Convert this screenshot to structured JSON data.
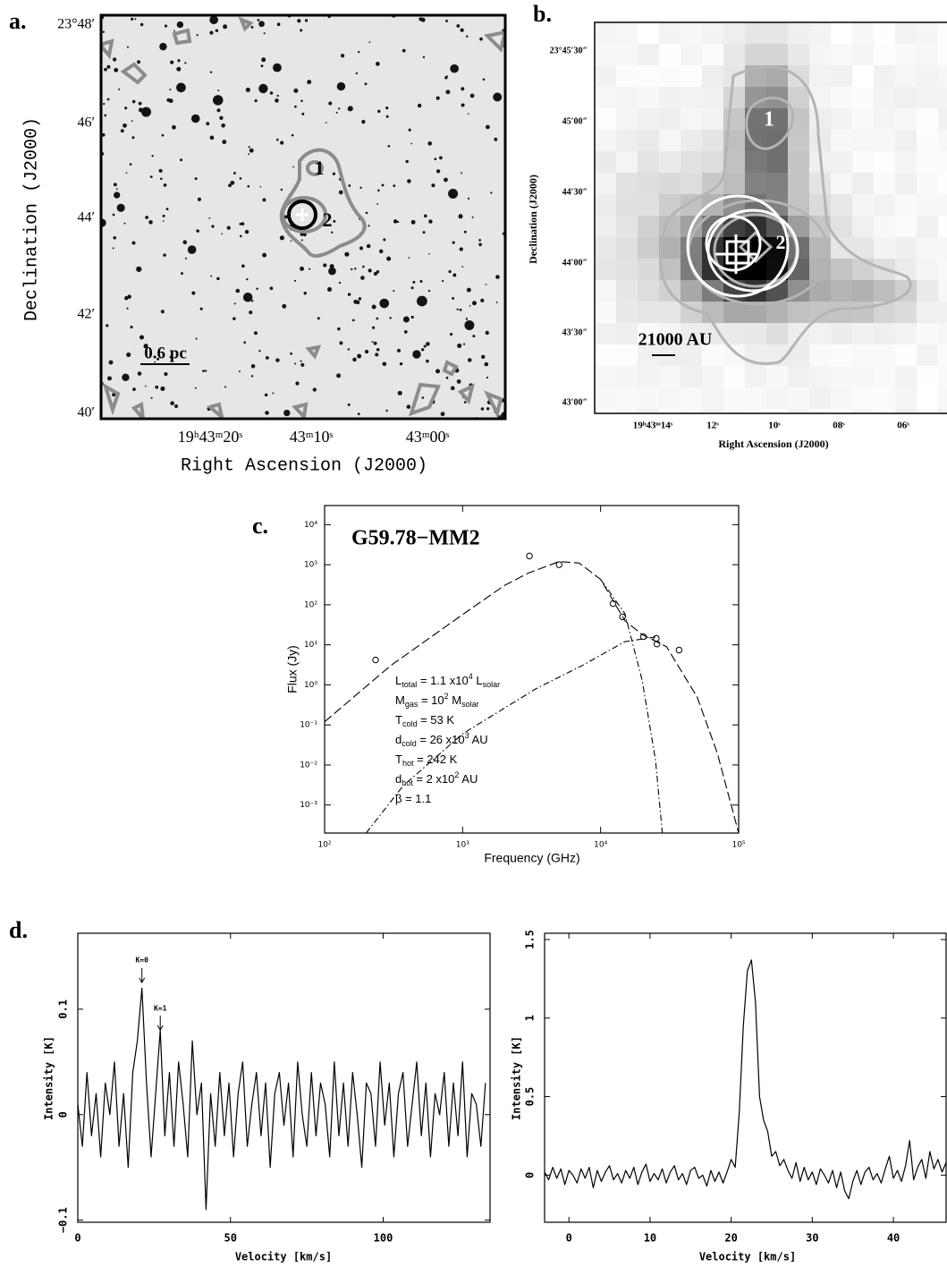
{
  "panel_labels": [
    "a.",
    "b.",
    "c.",
    "d."
  ],
  "images": [
    {
      "x_label": "Right Ascension (J2000)",
      "y_label": "Declination (J2000)",
      "x_tick_labels": [
        "19ʰ43ᵐ20ˢ",
        "43ᵐ10ˢ",
        "43ᵐ00ˢ"
      ],
      "y_tick_labels": [
        "23°48′",
        "46′",
        "44′",
        "42′",
        "40′"
      ],
      "annotations": [
        "1",
        "2",
        "0.6 pc"
      ]
    },
    {
      "x_label": "Right Ascension (J2000)",
      "y_label": "Declination (J2000)",
      "x_tick_labels": [
        "19ʰ43ᵐ14ˢ",
        "12ˢ",
        "10ˢ",
        "08ˢ",
        "06ˢ"
      ],
      "y_tick_labels": [
        "23°45′30″",
        "45′00″",
        "44′30″",
        "44′00″",
        "43′30″",
        "43′00″"
      ],
      "annotations": [
        "1",
        "2",
        "21000 AU"
      ]
    }
  ],
  "chart_data": [
    {
      "type": "line",
      "title": "G59.78−MM2",
      "x_label": "Frequency (GHz)",
      "y_label": "Flux (Jy)",
      "log_x": true,
      "log_y": true,
      "xlim": [
        100,
        100000
      ],
      "ylim": [
        0.0002,
        30000
      ],
      "xticks": [
        {
          "value": 100,
          "label": "10²"
        },
        {
          "value": 1000,
          "label": "10³"
        },
        {
          "value": 10000,
          "label": "10⁴"
        },
        {
          "value": 100000,
          "label": "10⁵"
        }
      ],
      "yticks": [
        {
          "value": 0.001,
          "label": "10⁻³"
        },
        {
          "value": 0.01,
          "label": "10⁻²"
        },
        {
          "value": 0.1,
          "label": "10⁻¹"
        },
        {
          "value": 1,
          "label": "10⁰"
        },
        {
          "value": 10,
          "label": "10¹"
        },
        {
          "value": 100,
          "label": "10²"
        },
        {
          "value": 1000,
          "label": "10³"
        },
        {
          "value": 10000,
          "label": "10⁴"
        }
      ],
      "series": [
        {
          "marker": "open-circle",
          "color": "#000000",
          "x": [
            234,
            3050,
            5000,
            12300,
            14400,
            20400,
            25300,
            25600,
            37000
          ],
          "values": [
            4.2,
            1650,
            1000,
            107,
            50,
            16,
            14.5,
            10.5,
            7.4
          ]
        },
        {
          "line": "long-dash",
          "color": "#000000",
          "x": [
            100,
            300,
            1000,
            2000,
            3000,
            5000,
            7000,
            10000,
            15000,
            20000,
            30000,
            50000,
            70000,
            100000
          ],
          "values": [
            0.12,
            3,
            57,
            300,
            620,
            1200,
            1100,
            430,
            40,
            18,
            9,
            0.5,
            0.02,
            0.0002
          ]
        },
        {
          "line": "dash-dot",
          "color": "#000000",
          "x": [
            10000,
            15000,
            20000,
            25000,
            28000
          ],
          "values": [
            430,
            60,
            1.3,
            0.013,
            0.0002
          ]
        },
        {
          "line": "dash-dot",
          "color": "#000000",
          "x": [
            200,
            370,
            1000,
            3400,
            7300,
            15000,
            26000
          ],
          "values": [
            0.0002,
            0.003,
            0.06,
            0.8,
            3,
            12,
            16
          ]
        }
      ],
      "notes": [
        [
          {
            "text": "L"
          },
          {
            "sub": "total"
          },
          {
            "text": " = 1.1 x10"
          },
          {
            "sup": "4"
          },
          {
            "text": " L"
          },
          {
            "sub": "solar"
          }
        ],
        [
          {
            "text": "M"
          },
          {
            "sub": "gas"
          },
          {
            "text": " = 10"
          },
          {
            "sup": "2"
          },
          {
            "text": " M"
          },
          {
            "sub": "solar"
          }
        ],
        [
          {
            "text": "T"
          },
          {
            "sub": "cold"
          },
          {
            "text": " = 53 K"
          }
        ],
        [
          {
            "text": "d"
          },
          {
            "sub": "cold"
          },
          {
            "text": " = 26 x10"
          },
          {
            "sup": "3"
          },
          {
            "text": " AU"
          }
        ],
        [
          {
            "text": "T"
          },
          {
            "sub": "hot"
          },
          {
            "text": " = 242 K"
          }
        ],
        [
          {
            "text": "d"
          },
          {
            "sub": "hot"
          },
          {
            "text": " = 2 x10"
          },
          {
            "sup": "2"
          },
          {
            "text": " AU"
          }
        ],
        [
          {
            "text": "β = 1.1"
          }
        ]
      ]
    },
    {
      "type": "line",
      "x_label": "Velocity  [km/s]",
      "y_label": "Intensity [K]",
      "xlim": [
        0,
        135
      ],
      "ylim": [
        -0.102,
        0.172
      ],
      "xticks": [
        0,
        50,
        100
      ],
      "yticks": [
        {
          "value": -0.1,
          "label": "−0.1"
        },
        0,
        0.1
      ],
      "annotations": [
        {
          "text": "K=0",
          "x": 21
        },
        {
          "text": "K=1",
          "x": 27
        }
      ],
      "series": [
        {
          "color": "#000000",
          "x": [
            0,
            1.5,
            3,
            4.5,
            6,
            7.5,
            9,
            10.5,
            12,
            13.5,
            15,
            16.5,
            18,
            19.5,
            21,
            22.5,
            24,
            25.5,
            27,
            28.5,
            30,
            31.5,
            33,
            34.5,
            36,
            37.5,
            39,
            40.5,
            42,
            43.5,
            45,
            46.5,
            48,
            49.5,
            51,
            52.5,
            54,
            55.5,
            57,
            58.5,
            60,
            61.5,
            63,
            64.5,
            66,
            67.5,
            69,
            70.5,
            72,
            73.5,
            75,
            76.5,
            78,
            79.5,
            81,
            82.5,
            84,
            85.5,
            87,
            88.5,
            90,
            91.5,
            93,
            94.5,
            96,
            97.5,
            99,
            100.5,
            102,
            103.5,
            105,
            106.5,
            108,
            109.5,
            111,
            112.5,
            114,
            115.5,
            117,
            118.5,
            120,
            121.5,
            123,
            124.5,
            126,
            127.5,
            129,
            130.5,
            132,
            133.5
          ],
          "values": [
            0.01,
            -0.03,
            0.04,
            -0.02,
            0.02,
            -0.04,
            0.03,
            0.0,
            0.05,
            -0.03,
            0.02,
            -0.05,
            0.04,
            0.07,
            0.12,
            0.03,
            -0.04,
            0.02,
            0.08,
            -0.02,
            0.04,
            -0.03,
            0.05,
            0.01,
            -0.04,
            0.07,
            0.0,
            0.03,
            -0.09,
            0.02,
            -0.03,
            0.04,
            -0.02,
            0.03,
            -0.04,
            0.02,
            0.05,
            -0.03,
            0.01,
            0.04,
            -0.02,
            0.03,
            -0.05,
            0.02,
            0.04,
            -0.01,
            0.03,
            -0.04,
            0.05,
            0.0,
            -0.03,
            0.04,
            -0.02,
            0.03,
            0.01,
            -0.04,
            0.05,
            -0.02,
            0.03,
            -0.03,
            0.04,
            0.0,
            -0.05,
            0.03,
            0.02,
            -0.03,
            0.05,
            -0.01,
            0.03,
            -0.04,
            0.02,
            0.04,
            -0.03,
            0.01,
            0.05,
            -0.02,
            0.03,
            -0.04,
            0.02,
            0.0,
            0.04,
            -0.03,
            0.03,
            -0.02,
            0.05,
            -0.04,
            0.02,
            0.01,
            -0.03,
            0.03
          ]
        }
      ]
    },
    {
      "type": "line",
      "x_label": "Velocity  [km/s]",
      "y_label": "Intensity [K]",
      "xlim": [
        -3,
        46.5
      ],
      "ylim": [
        -0.3,
        1.54
      ],
      "xticks": [
        0,
        10,
        20,
        30,
        40
      ],
      "yticks": [
        0,
        0.5,
        1,
        1.5
      ],
      "series": [
        {
          "color": "#000000",
          "x": [
            -3,
            -2.5,
            -2,
            -1.5,
            -1,
            -0.5,
            0,
            0.5,
            1,
            1.5,
            2,
            2.5,
            3,
            3.5,
            4,
            4.5,
            5,
            5.5,
            6,
            6.5,
            7,
            7.5,
            8,
            8.5,
            9,
            9.5,
            10,
            10.5,
            11,
            11.5,
            12,
            12.5,
            13,
            13.5,
            14,
            14.5,
            15,
            15.5,
            16,
            16.5,
            17,
            17.5,
            18,
            18.5,
            19,
            19.5,
            20,
            20.5,
            21,
            21.5,
            22,
            22.5,
            23,
            23.5,
            24,
            24.5,
            25,
            25.5,
            26,
            26.5,
            27,
            27.5,
            28,
            28.5,
            29,
            29.5,
            30,
            30.5,
            31,
            31.5,
            32,
            32.5,
            33,
            33.5,
            34,
            34.5,
            35,
            35.5,
            36,
            36.5,
            37,
            37.5,
            38,
            38.5,
            39,
            39.5,
            40,
            40.5,
            41,
            41.5,
            42,
            42.5,
            43,
            43.5,
            44,
            44.5,
            45,
            45.5,
            46,
            46.5
          ],
          "values": [
            0.02,
            -0.03,
            0.05,
            -0.02,
            0.04,
            -0.06,
            0.03,
            0.0,
            -0.05,
            0.04,
            -0.02,
            0.05,
            -0.08,
            0.03,
            -0.04,
            0.02,
            0.06,
            -0.03,
            0.01,
            -0.05,
            0.03,
            -0.02,
            0.05,
            -0.06,
            0.02,
            0.07,
            -0.04,
            0.01,
            -0.03,
            0.04,
            -0.05,
            0.02,
            0.06,
            -0.03,
            0.01,
            -0.06,
            0.03,
            0.05,
            -0.02,
            0.0,
            -0.07,
            0.03,
            -0.04,
            0.02,
            -0.05,
            0.02,
            0.1,
            0.05,
            0.4,
            0.95,
            1.3,
            1.37,
            1.1,
            0.5,
            0.35,
            0.28,
            0.12,
            0.15,
            0.06,
            0.1,
            0.03,
            -0.02,
            0.08,
            -0.04,
            0.05,
            -0.03,
            0.02,
            -0.06,
            0.04,
            0.0,
            -0.05,
            0.03,
            -0.08,
            0.02,
            -0.1,
            -0.15,
            -0.04,
            0.03,
            -0.06,
            0.02,
            0.05,
            -0.03,
            0.01,
            -0.05,
            0.04,
            0.12,
            -0.02,
            0.03,
            -0.04,
            0.06,
            0.22,
            -0.03,
            0.05,
            0.1,
            -0.02,
            0.15,
            0.04,
            0.1,
            0.02,
            0.08
          ]
        }
      ]
    }
  ]
}
